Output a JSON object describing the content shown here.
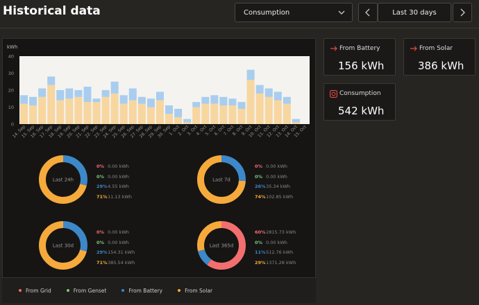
{
  "header": {
    "title": "Historical data",
    "dropdown_value": "Consumption",
    "range_label": "Last 30 days"
  },
  "chart_data": {
    "type": "bar",
    "stacked": true,
    "ylabel": "kWh",
    "ylim": [
      0,
      40
    ],
    "yticks": [
      0,
      10,
      20,
      30,
      40
    ],
    "categories": [
      "14. Sep",
      "15. Sep",
      "16. Sep",
      "17. Sep",
      "18. Sep",
      "19. Sep",
      "20. Sep",
      "21. Sep",
      "22. Sep",
      "23. Sep",
      "24. Sep",
      "25. Sep",
      "26. Sep",
      "27. Sep",
      "28. Sep",
      "29. Sep",
      "30. Sep",
      "1. Oct",
      "2. Oct",
      "3. Oct",
      "4. Oct",
      "5. Oct",
      "6. Oct",
      "7. Oct",
      "8. Oct",
      "9. Oct",
      "10. Oct",
      "11. Oct",
      "12. Oct",
      "13. Oct",
      "14. Oct",
      "15. Oct"
    ],
    "series": [
      {
        "name": "From Solar",
        "color": "#f7d6a0",
        "values": [
          12,
          11,
          16,
          23,
          14,
          15,
          16,
          13,
          13,
          16,
          18,
          12,
          14,
          12,
          10,
          14,
          6,
          4,
          1,
          10,
          12,
          12,
          11,
          11,
          9,
          26,
          18,
          16,
          14,
          12,
          1,
          0
        ]
      },
      {
        "name": "From Battery",
        "color": "#a9cdee",
        "values": [
          5,
          5,
          5,
          5,
          6,
          6,
          4,
          9,
          2,
          4,
          7,
          5,
          7,
          4,
          5,
          5,
          5,
          5,
          2,
          3,
          4,
          5,
          5,
          4,
          4,
          6,
          5,
          5,
          5,
          4,
          2,
          0
        ]
      }
    ]
  },
  "donuts": [
    {
      "label": "Last 24h",
      "grid": {
        "pct": "0%",
        "kwh": "0.00 kWh"
      },
      "genset": {
        "pct": "0%",
        "kwh": "0.00 kWh"
      },
      "battery": {
        "pct": "29%",
        "kwh": "4.55 kWh"
      },
      "solar": {
        "pct": "71%",
        "kwh": "11.13 kWh"
      },
      "fractions": [
        0,
        0,
        0.29,
        0.71
      ]
    },
    {
      "label": "Last 7d",
      "grid": {
        "pct": "0%",
        "kwh": "0.00 kWh"
      },
      "genset": {
        "pct": "0%",
        "kwh": "0.00 kWh"
      },
      "battery": {
        "pct": "26%",
        "kwh": "35.34 kWh"
      },
      "solar": {
        "pct": "74%",
        "kwh": "102.85 kWh"
      },
      "fractions": [
        0,
        0,
        0.26,
        0.74
      ]
    },
    {
      "label": "Last 30d",
      "grid": {
        "pct": "0%",
        "kwh": "0.00 kWh"
      },
      "genset": {
        "pct": "0%",
        "kwh": "0.00 kWh"
      },
      "battery": {
        "pct": "29%",
        "kwh": "154.31 kWh"
      },
      "solar": {
        "pct": "71%",
        "kwh": "385.54 kWh"
      },
      "fractions": [
        0,
        0,
        0.29,
        0.71
      ]
    },
    {
      "label": "Last 365d",
      "grid": {
        "pct": "60%",
        "kwh": "2815.73 kWh"
      },
      "genset": {
        "pct": "0%",
        "kwh": "0.00 kWh"
      },
      "battery": {
        "pct": "11%",
        "kwh": "512.76 kWh"
      },
      "solar": {
        "pct": "29%",
        "kwh": "1371.28 kWh"
      },
      "fractions": [
        0.6,
        0,
        0.11,
        0.29
      ]
    }
  ],
  "legend": {
    "grid": "From Grid",
    "genset": "From Genset",
    "battery": "From Battery",
    "solar": "From Solar"
  },
  "colors": {
    "grid": "#f36f6f",
    "genset": "#7ec97a",
    "battery": "#3d88c9",
    "solar": "#f6aa3c",
    "arrow": "#e84c3d"
  },
  "cards": {
    "battery": {
      "label": "From Battery",
      "value": "156 kWh"
    },
    "solar": {
      "label": "From Solar",
      "value": "386 kWh"
    },
    "consumption": {
      "label": "Consumption",
      "value": "542 kWh"
    }
  }
}
